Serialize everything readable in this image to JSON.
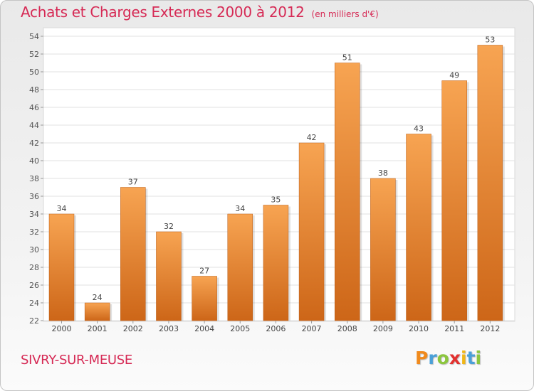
{
  "title": "Achats et Charges Externes 2000 à 2012",
  "subtitle": "(en milliers d'€)",
  "commune": "SIVRY-SUR-MEUSE",
  "brand": {
    "letters": [
      "P",
      "r",
      "o",
      "x",
      "i",
      "t",
      "i"
    ],
    "colors": [
      "#f08a1d",
      "#4aa0d8",
      "#8cc63e",
      "#e2312f",
      "#f0b616",
      "#4aa0d8",
      "#8cc63e"
    ]
  },
  "colors": {
    "accent": "#d62a55",
    "bar_top": "#f7a452",
    "bar_bottom": "#cd6618"
  },
  "chart_data": {
    "type": "bar",
    "categories": [
      "2000",
      "2001",
      "2002",
      "2003",
      "2004",
      "2005",
      "2006",
      "2007",
      "2008",
      "2009",
      "2010",
      "2011",
      "2012"
    ],
    "values": [
      34,
      24,
      37,
      32,
      27,
      34,
      35,
      42,
      51,
      38,
      43,
      49,
      53
    ],
    "y_ticks": [
      "22",
      "24",
      "26",
      "28",
      "30",
      "32",
      "34",
      "36",
      "38",
      "40",
      "42",
      "44",
      "46",
      "48",
      "50",
      "52",
      "54"
    ],
    "ylim": [
      22,
      54
    ],
    "grid": true
  }
}
